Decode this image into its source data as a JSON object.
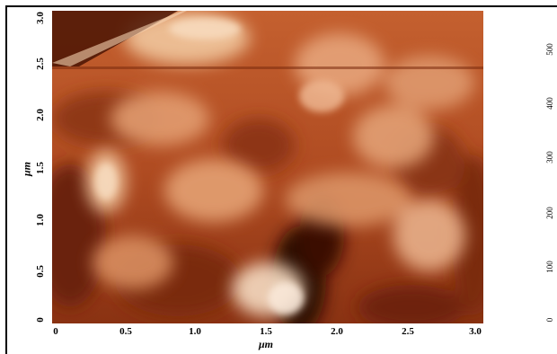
{
  "image": {
    "description_colormap": "afm-copper",
    "x_axis": {
      "title": "μm",
      "ticks": [
        "0",
        "0.5",
        "1.0",
        "1.5",
        "2.0",
        "2.5",
        "3.0"
      ]
    },
    "y_axis": {
      "title": "μm",
      "ticks": [
        "0",
        "0.5",
        "1.0",
        "1.5",
        "2.0",
        "2.5",
        "3.0"
      ]
    },
    "scale_bar": {
      "ticks": [
        "0",
        "100",
        "200",
        "300",
        "400",
        "500"
      ]
    },
    "colors": {
      "dark": "#3a0d02",
      "mid": "#b9532a",
      "light": "#f6dcc2",
      "frame": "#000000"
    }
  }
}
